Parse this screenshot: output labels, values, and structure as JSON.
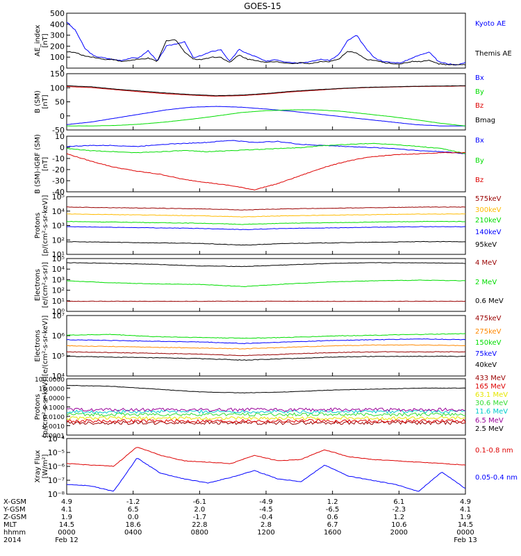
{
  "title": "GOES-15",
  "colors": {
    "black": "#000000",
    "blue": "#0000ff",
    "green": "#00dd00",
    "red": "#dd0000",
    "darkred": "#990000",
    "orange": "#ff8800",
    "gold": "#ffbb00",
    "yellowish": "#e6e600",
    "cyan": "#00cccc",
    "lime": "#33dd33",
    "purple": "#990099"
  },
  "chart_data": [
    {
      "type": "line",
      "id": "ae",
      "ylabel": "AE_index\n[nT]",
      "ylim": [
        0,
        500
      ],
      "yticks": [
        "0",
        "100",
        "200",
        "300",
        "400",
        "500"
      ],
      "series": [
        {
          "name": "Kyoto AE",
          "color": "blue",
          "values": [
            420,
            340,
            180,
            110,
            95,
            80,
            70,
            90,
            95,
            160,
            60,
            200,
            220,
            240,
            90,
            120,
            150,
            170,
            60,
            170,
            130,
            100,
            60,
            80,
            60,
            50,
            50,
            60,
            80,
            70,
            120,
            250,
            300,
            180,
            90,
            60,
            50,
            50,
            90,
            120,
            150,
            60,
            40,
            30,
            50
          ]
        },
        {
          "name": "Themis AE",
          "color": "black",
          "values": [
            150,
            140,
            110,
            100,
            80,
            80,
            60,
            70,
            80,
            90,
            60,
            250,
            260,
            150,
            80,
            80,
            100,
            100,
            50,
            120,
            80,
            70,
            50,
            60,
            50,
            40,
            50,
            40,
            60,
            60,
            80,
            150,
            140,
            80,
            70,
            50,
            40,
            40,
            60,
            60,
            70,
            40,
            30,
            30,
            30
          ]
        }
      ]
    },
    {
      "type": "line",
      "id": "bsm",
      "ylabel": "B (SM)\n[nT]",
      "ylim": [
        -60,
        150
      ],
      "yticks": [
        "-50",
        "0",
        "50",
        "100",
        "150"
      ],
      "series": [
        {
          "name": "Bx",
          "color": "blue",
          "values": [
            -40,
            -30,
            -15,
            0,
            15,
            25,
            28,
            25,
            18,
            10,
            0,
            -10,
            -20,
            -30,
            -40,
            -45,
            -45
          ]
        },
        {
          "name": "By",
          "color": "green",
          "values": [
            -45,
            -45,
            -43,
            -38,
            -30,
            -20,
            -8,
            5,
            12,
            15,
            15,
            10,
            0,
            -10,
            -22,
            -35,
            -45
          ]
        },
        {
          "name": "Bz",
          "color": "red",
          "values": [
            102,
            98,
            90,
            82,
            75,
            70,
            66,
            68,
            74,
            82,
            88,
            94,
            98,
            100,
            102,
            103,
            104
          ]
        },
        {
          "name": "Bmag",
          "color": "black",
          "values": [
            105,
            101,
            92,
            85,
            78,
            72,
            68,
            70,
            76,
            84,
            90,
            95,
            99,
            101,
            103,
            104,
            105
          ]
        }
      ]
    },
    {
      "type": "line",
      "id": "bdiff",
      "ylabel": "B (SM)-IGRF (SM)\n[nT]",
      "ylim": [
        -42,
        12
      ],
      "yticks": [
        "-40",
        "-30",
        "-20",
        "-10",
        "0",
        "10"
      ],
      "series": [
        {
          "name": "Bx",
          "color": "blue",
          "values": [
            2,
            3,
            3,
            2,
            4,
            5,
            6,
            8,
            6,
            7,
            4,
            3,
            2,
            1,
            0,
            -2,
            -3,
            -5
          ]
        },
        {
          "name": "By",
          "color": "green",
          "values": [
            0,
            -2,
            -3,
            -4,
            -3,
            -2,
            -3,
            -2,
            -1,
            0,
            1,
            3,
            4,
            5,
            4,
            2,
            0,
            -5
          ]
        },
        {
          "name": "Bz",
          "color": "red",
          "values": [
            -5,
            -12,
            -18,
            -22,
            -25,
            -30,
            -33,
            -36,
            -40,
            -34,
            -26,
            -18,
            -12,
            -8,
            -6,
            -5,
            -4,
            -4
          ]
        }
      ]
    },
    {
      "type": "line",
      "id": "protons1",
      "yscale": "log",
      "ylabel": "Protons\n[p/(cm²-s-sr-keV)]",
      "ylim_log": [
        1,
        6
      ],
      "yticks": [
        "10¹",
        "10²",
        "10³",
        "10⁴",
        "10⁵"
      ],
      "series": [
        {
          "name": "575keV",
          "color": "darkred",
          "log_values": [
            5.1,
            5.05,
            5.0,
            4.95,
            4.85,
            4.95,
            5.0,
            5.05,
            5.1,
            5.1
          ]
        },
        {
          "name": "300keV",
          "color": "gold",
          "log_values": [
            4.5,
            4.45,
            4.4,
            4.35,
            4.25,
            4.35,
            4.4,
            4.45,
            4.5,
            4.5
          ]
        },
        {
          "name": "210keV",
          "color": "green",
          "log_values": [
            3.85,
            3.8,
            3.75,
            3.7,
            3.6,
            3.7,
            3.75,
            3.8,
            3.85,
            3.85
          ]
        },
        {
          "name": "140keV",
          "color": "blue",
          "log_values": [
            3.4,
            3.35,
            3.3,
            3.25,
            3.15,
            3.25,
            3.3,
            3.35,
            3.4,
            3.4
          ]
        },
        {
          "name": "95keV",
          "color": "black",
          "log_values": [
            2.1,
            2.05,
            2.0,
            1.95,
            1.8,
            1.95,
            2.0,
            2.05,
            2.1,
            2.1
          ]
        }
      ]
    },
    {
      "type": "line",
      "id": "electrons1",
      "yscale": "log",
      "ylabel": "Electrons\n[e/(cm²-s-sr)]",
      "ylim_log": [
        0,
        5
      ],
      "yticks": [
        "10⁰",
        "10¹",
        "10²",
        "10³",
        "10⁴",
        "10⁵"
      ],
      "series": [
        {
          "name": "4 MeV",
          "color": "darkred",
          "log_values": [
            0.95,
            0.95,
            0.95,
            0.95,
            0.95,
            0.95,
            0.95,
            0.95,
            0.95,
            0.95
          ]
        },
        {
          "name": "2 MeV",
          "color": "green",
          "log_values": [
            2.9,
            2.7,
            2.6,
            2.55,
            2.35,
            2.6,
            2.8,
            2.9,
            2.95,
            2.9
          ]
        },
        {
          "name": "0.6 MeV",
          "color": "black",
          "log_values": [
            4.6,
            4.55,
            4.45,
            4.3,
            4.25,
            4.4,
            4.55,
            4.6,
            4.6,
            4.55
          ]
        }
      ]
    },
    {
      "type": "line",
      "id": "electrons2",
      "yscale": "log",
      "ylabel": "Electrons\n[e/(cm²-s-sr-keV)]",
      "ylim_log": [
        3,
        7
      ],
      "yticks": [
        "10⁷",
        "10⁶",
        "10⁵",
        "10⁴"
      ],
      "series": [
        {
          "name": "475keV",
          "color": "darkred",
          "log_values": [
            4.6,
            4.55,
            4.5,
            4.45,
            4.35,
            4.45,
            4.55,
            4.6,
            4.6,
            4.6
          ]
        },
        {
          "name": "275keV",
          "color": "orange",
          "log_values": [
            5.0,
            4.95,
            4.9,
            4.85,
            4.8,
            4.9,
            5.0,
            5.05,
            5.05,
            5.0
          ]
        },
        {
          "name": "150keV",
          "color": "green",
          "log_values": [
            5.7,
            5.75,
            5.6,
            5.55,
            5.5,
            5.55,
            5.65,
            5.7,
            5.75,
            5.8
          ]
        },
        {
          "name": "75keV",
          "color": "blue",
          "log_values": [
            5.4,
            5.35,
            5.3,
            5.25,
            5.15,
            5.25,
            5.35,
            5.4,
            5.45,
            5.4
          ]
        },
        {
          "name": "40keV",
          "color": "black",
          "log_values": [
            4.3,
            4.25,
            4.2,
            4.15,
            4.05,
            4.15,
            4.25,
            4.3,
            4.3,
            4.3
          ]
        }
      ]
    },
    {
      "type": "line",
      "id": "protons2",
      "yscale": "log",
      "ylabel": "Protons\n[p/(cm²-s-sr-keV)]",
      "ylim_log": [
        -4,
        2
      ],
      "yticks": [
        "100.0000",
        "10.0000",
        "1.0000",
        "0.1000",
        "0.0100",
        "0.0010",
        "0.0001"
      ],
      "series": [
        {
          "name": "433 MeV",
          "color": "darkred",
          "log_values": [
            -2.7,
            -2.7,
            -2.7,
            -2.7,
            -2.7,
            -2.7,
            -2.7,
            -2.7,
            -2.7,
            -2.7
          ]
        },
        {
          "name": "165 MeV",
          "color": "red",
          "log_values": [
            -2.5,
            -2.5,
            -2.5,
            -2.5,
            -2.5,
            -2.5,
            -2.5,
            -2.5,
            -2.5,
            -2.5
          ]
        },
        {
          "name": "63.1 MeV",
          "color": "yellowish",
          "log_values": [
            -2.2,
            -2.2,
            -2.2,
            -2.2,
            -2.2,
            -2.2,
            -2.2,
            -2.2,
            -2.2,
            -2.2
          ]
        },
        {
          "name": "30.6 MeV",
          "color": "lime",
          "log_values": [
            -1.8,
            -1.8,
            -1.8,
            -1.8,
            -1.8,
            -1.8,
            -1.8,
            -1.8,
            -1.8,
            -1.8
          ]
        },
        {
          "name": "11.6 MeV",
          "color": "cyan",
          "log_values": [
            -1.5,
            -1.5,
            -1.5,
            -1.5,
            -1.5,
            -1.5,
            -1.5,
            -1.5,
            -1.5,
            -1.5
          ]
        },
        {
          "name": "6.5 MeV",
          "color": "purple",
          "log_values": [
            -1.3,
            -1.3,
            -1.3,
            -1.3,
            -1.3,
            -1.3,
            -1.3,
            -1.3,
            -1.3,
            -1.3
          ]
        },
        {
          "name": "2.5 MeV",
          "color": "black",
          "log_values": [
            1.3,
            1.2,
            0.9,
            0.6,
            0.5,
            0.6,
            0.8,
            0.9,
            1.0,
            1.0
          ]
        }
      ]
    },
    {
      "type": "line",
      "id": "xray",
      "yscale": "log",
      "ylabel": "Xray Flux\n[W/m²]",
      "ylim_log": [
        -8,
        -4
      ],
      "yticks": [
        "10⁻⁴",
        "10⁻⁵",
        "10⁻⁶",
        "10⁻⁷",
        "10⁻⁸"
      ],
      "series": [
        {
          "name": "0.1-0.8 nm",
          "color": "red",
          "log_values": [
            -5.8,
            -5.9,
            -6.0,
            -4.6,
            -5.2,
            -5.6,
            -5.7,
            -5.8,
            -5.2,
            -5.6,
            -5.5,
            -4.8,
            -5.3,
            -5.5,
            -5.6,
            -5.7,
            -5.8,
            -5.9
          ]
        },
        {
          "name": "0.05-0.4 nm",
          "color": "blue",
          "log_values": [
            -7.3,
            -7.4,
            -7.8,
            -5.4,
            -6.5,
            -6.9,
            -7.2,
            -6.8,
            -6.3,
            -6.9,
            -7.1,
            -5.9,
            -6.7,
            -7.0,
            -7.3,
            -7.8,
            -6.4,
            -7.6
          ]
        }
      ]
    }
  ],
  "x_axis": {
    "rows": [
      {
        "label": "X-GSM",
        "ticks": [
          "4.9",
          "-1.2",
          "-6.1",
          "-4.9",
          "1.2",
          "6.1",
          "4.9"
        ]
      },
      {
        "label": "Y-GSM",
        "ticks": [
          "4.1",
          "6.5",
          "2.0",
          "-4.5",
          "-6.5",
          "-2.3",
          "4.1"
        ]
      },
      {
        "label": "Z-GSM",
        "ticks": [
          "1.9",
          "0.0",
          "-1.7",
          "-0.4",
          "0.6",
          "1.2",
          "1.9"
        ]
      },
      {
        "label": "MLT",
        "ticks": [
          "14.5",
          "18.6",
          "22.8",
          "2.8",
          "6.7",
          "10.6",
          "14.5"
        ]
      },
      {
        "label": "hhmm",
        "ticks": [
          "0000",
          "0400",
          "0800",
          "1200",
          "1600",
          "2000",
          "0000"
        ]
      },
      {
        "label": "2014",
        "ticks": [
          "Feb 12",
          "",
          "",
          "",
          "",
          "",
          "Feb 13"
        ]
      }
    ]
  }
}
